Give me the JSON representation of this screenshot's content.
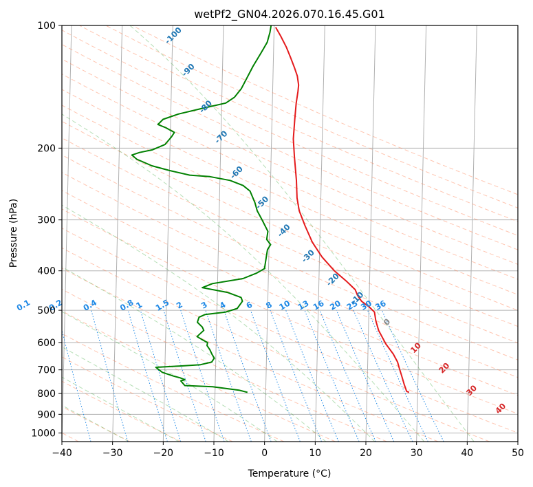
{
  "chart_data": {
    "type": "line",
    "diagram": "skew-T log-P",
    "title": "wetPf2_GN04.2026.070.16.45.G01",
    "xlabel": "Temperature (°C)",
    "ylabel": "Pressure (hPa)",
    "xlim": [
      -40,
      50
    ],
    "ylim_hpa": [
      1050,
      100
    ],
    "y_scale": "log",
    "grid": true,
    "x_ticks": [
      "−40",
      "−30",
      "−20",
      "−10",
      "0",
      "10",
      "20",
      "30",
      "40",
      "50"
    ],
    "y_ticks": [
      "100",
      "200",
      "300",
      "400",
      "500",
      "600",
      "700",
      "800",
      "900",
      "1000"
    ],
    "series": [
      {
        "color": "#e41a1c",
        "points": [
          [
            28.3,
            795
          ],
          [
            27.8,
            790
          ],
          [
            27.3,
            760
          ],
          [
            26.7,
            720
          ],
          [
            26.2,
            690
          ],
          [
            25.9,
            670
          ],
          [
            25,
            640
          ],
          [
            23.5,
            605
          ],
          [
            22,
            560
          ],
          [
            21.4,
            530
          ],
          [
            21.1,
            505
          ],
          [
            20,
            490
          ],
          [
            18.5,
            475
          ],
          [
            17.7,
            460
          ],
          [
            17.2,
            445
          ],
          [
            15.5,
            425
          ],
          [
            13,
            400
          ],
          [
            10.5,
            370
          ],
          [
            8.5,
            340
          ],
          [
            7,
            310
          ],
          [
            5.8,
            285
          ],
          [
            5.3,
            265
          ],
          [
            5.1,
            240
          ],
          [
            4.6,
            210
          ],
          [
            4.3,
            190
          ],
          [
            4.5,
            170
          ],
          [
            4.7,
            155
          ],
          [
            5,
            145
          ],
          [
            5.1,
            140
          ],
          [
            4.8,
            133
          ],
          [
            4.2,
            127
          ],
          [
            3.4,
            120
          ],
          [
            2.5,
            113
          ],
          [
            1.3,
            106
          ],
          [
            0.3,
            101
          ]
        ]
      },
      {
        "color": "#008000",
        "points": [
          [
            -3.6,
            795
          ],
          [
            -5.3,
            785
          ],
          [
            -10.5,
            770
          ],
          [
            -16,
            765
          ],
          [
            -16.8,
            745
          ],
          [
            -16,
            740
          ],
          [
            -17,
            732
          ],
          [
            -18.3,
            725
          ],
          [
            -20.5,
            710
          ],
          [
            -21.8,
            690
          ],
          [
            -17,
            685
          ],
          [
            -13,
            680
          ],
          [
            -10.8,
            670
          ],
          [
            -10.3,
            655
          ],
          [
            -10.8,
            640
          ],
          [
            -11.2,
            625
          ],
          [
            -11.8,
            610
          ],
          [
            -11.7,
            600
          ],
          [
            -12.8,
            590
          ],
          [
            -13.8,
            580
          ],
          [
            -12.5,
            560
          ],
          [
            -12.8,
            550
          ],
          [
            -13.8,
            535
          ],
          [
            -13.5,
            520
          ],
          [
            -12.3,
            512
          ],
          [
            -8.3,
            505
          ],
          [
            -6,
            495
          ],
          [
            -5,
            475
          ],
          [
            -5.3,
            465
          ],
          [
            -8,
            452
          ],
          [
            -13,
            440
          ],
          [
            -11,
            430
          ],
          [
            -5,
            418
          ],
          [
            -2.3,
            405
          ],
          [
            -0.8,
            395
          ],
          [
            -0.5,
            370
          ],
          [
            -0.3,
            355
          ],
          [
            0.3,
            345
          ],
          [
            -0.5,
            335
          ],
          [
            -0.3,
            320
          ],
          [
            -1.5,
            300
          ],
          [
            -2.5,
            285
          ],
          [
            -3,
            272
          ],
          [
            -4,
            255
          ],
          [
            -5.4,
            247
          ],
          [
            -8,
            240
          ],
          [
            -12,
            235
          ],
          [
            -16,
            233
          ],
          [
            -20,
            227
          ],
          [
            -23.5,
            221
          ],
          [
            -26.5,
            213
          ],
          [
            -27.5,
            208
          ],
          [
            -26,
            205
          ],
          [
            -23.5,
            202
          ],
          [
            -21,
            196
          ],
          [
            -19.8,
            188
          ],
          [
            -19.2,
            183
          ],
          [
            -21,
            178
          ],
          [
            -22.5,
            175
          ],
          [
            -21.5,
            170
          ],
          [
            -18.5,
            165
          ],
          [
            -14,
            160
          ],
          [
            -9.2,
            155
          ],
          [
            -7.5,
            150
          ],
          [
            -6.2,
            143
          ],
          [
            -5.2,
            135
          ],
          [
            -4,
            126
          ],
          [
            -2.5,
            117
          ],
          [
            -1.3,
            110
          ],
          [
            -0.8,
            104
          ],
          [
            -0.6,
            100
          ]
        ]
      }
    ],
    "dry_adiabats": {
      "theta_c": [
        -40,
        -30,
        -20,
        -10,
        0,
        10,
        20,
        30,
        40,
        50,
        60,
        70,
        80,
        90,
        100,
        110,
        120,
        130,
        140,
        150,
        160,
        170,
        180,
        190,
        200
      ],
      "color": "#ff7f50",
      "style": "dashed"
    },
    "moist_adiabats": {
      "t1000_c": [
        -30,
        -20,
        -10,
        0,
        10,
        20,
        30,
        40
      ],
      "color": "#2ca02c",
      "style": "dashed"
    },
    "mixing_ratio_lines": {
      "values": [
        0.1,
        0.2,
        0.4,
        0.8,
        1,
        1.5,
        2,
        3,
        4,
        6,
        8,
        10,
        13,
        16,
        20,
        25,
        30,
        36
      ],
      "labels": [
        "0.1",
        "0.2",
        "0.4",
        "0.8",
        "1",
        "1.5",
        "2",
        "3",
        "4",
        "6",
        "8",
        "10",
        "13",
        "16",
        "20",
        "25",
        "30",
        "36"
      ],
      "label_level_hpa": 500,
      "color": "#1e88e5",
      "style": "dotted"
    },
    "blue_adiabat_labels": {
      "labels": [
        "-100",
        "-90",
        "-80",
        "-70",
        "-60",
        "-50",
        "-40",
        "-30",
        "-20",
        "-10"
      ],
      "points": [
        [
          -19.5,
          107
        ],
        [
          -16.4,
          130
        ],
        [
          -12.8,
          160
        ],
        [
          -9.6,
          190
        ],
        [
          -6.4,
          232
        ],
        [
          -1.2,
          275
        ],
        [
          3.2,
          322
        ],
        [
          8.1,
          372
        ],
        [
          13.1,
          425
        ],
        [
          18,
          472
        ]
      ],
      "color": "#1f77b4"
    },
    "red_adiabat_labels": {
      "labels": [
        "0",
        "10",
        "20",
        "30",
        "40"
      ],
      "points": [
        [
          24,
          540
        ],
        [
          29.8,
          625
        ],
        [
          35.5,
          700
        ],
        [
          41,
          795
        ],
        [
          46.8,
          880
        ]
      ],
      "colors": [
        "#888888",
        "#d62728",
        "#d62728",
        "#d62728",
        "#d62728"
      ]
    }
  }
}
